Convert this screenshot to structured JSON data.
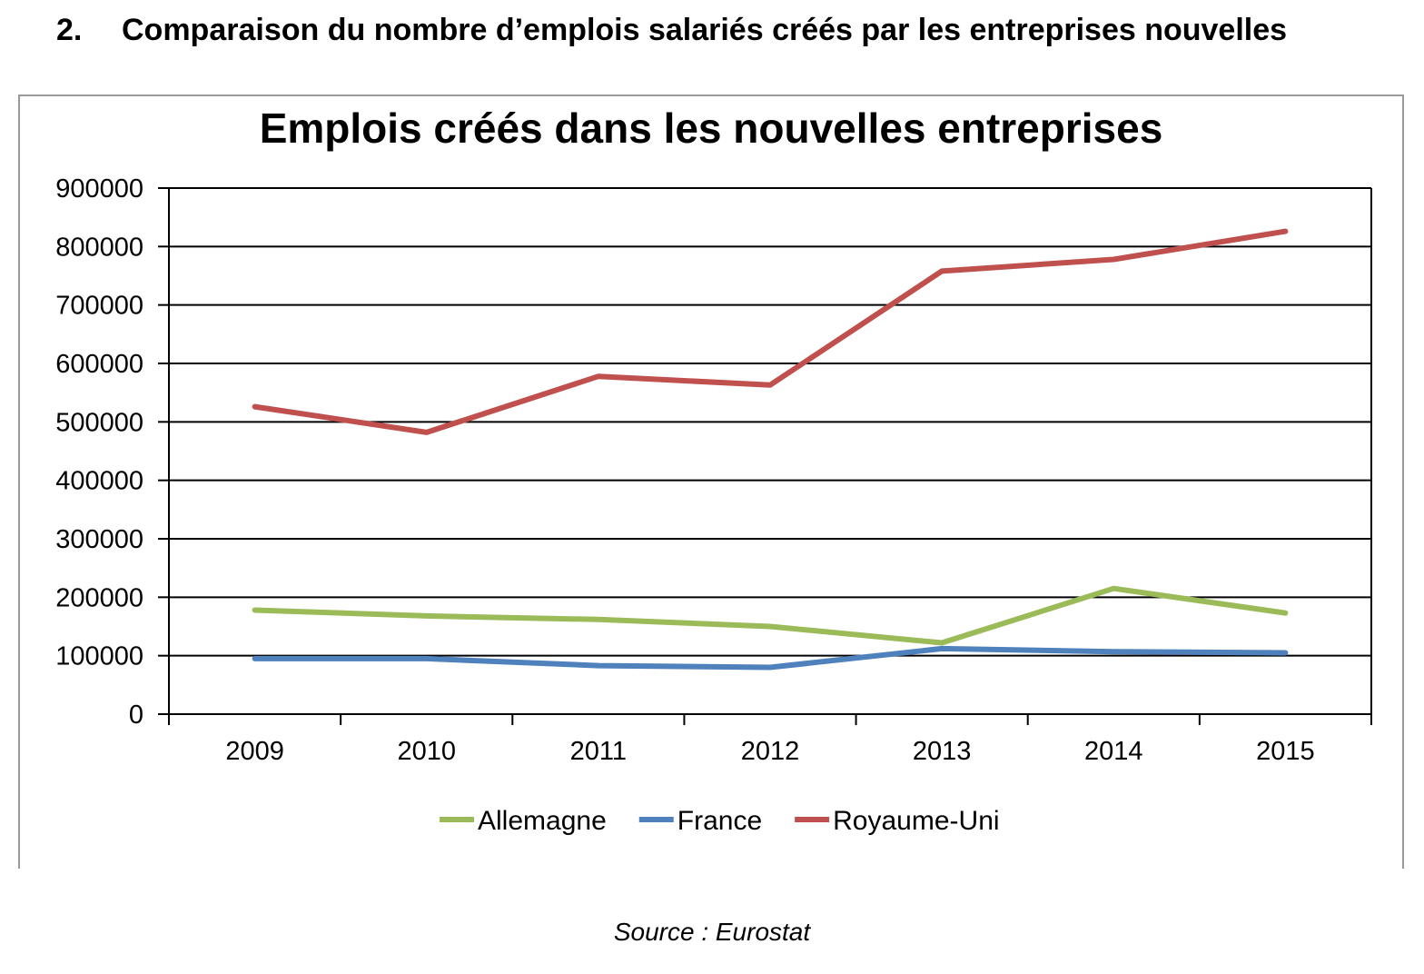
{
  "heading": {
    "number": "2.",
    "text": "Comparaison du nombre d’emplois salariés créés par les entreprises nouvelles"
  },
  "source": "Source : Eurostat",
  "chart_data": {
    "type": "line",
    "title": "Emplois créés dans les nouvelles entreprises",
    "xlabel": "",
    "ylabel": "",
    "categories": [
      "2009",
      "2010",
      "2011",
      "2012",
      "2013",
      "2014",
      "2015"
    ],
    "ylim": [
      0,
      900000
    ],
    "yticks": [
      "0",
      "100000",
      "200000",
      "300000",
      "400000",
      "500000",
      "600000",
      "700000",
      "800000",
      "900000"
    ],
    "grid": true,
    "legend_position": "bottom",
    "series": [
      {
        "name": "Allemagne",
        "color": "#9bbb59",
        "values": [
          178000,
          168000,
          162000,
          150000,
          122000,
          215000,
          173000
        ]
      },
      {
        "name": "France",
        "color": "#4f81bd",
        "values": [
          95000,
          95000,
          83000,
          80000,
          112000,
          107000,
          105000
        ]
      },
      {
        "name": "Royaume-Uni",
        "color": "#c0504d",
        "values": [
          526000,
          482000,
          578000,
          563000,
          758000,
          778000,
          826000
        ]
      }
    ]
  }
}
